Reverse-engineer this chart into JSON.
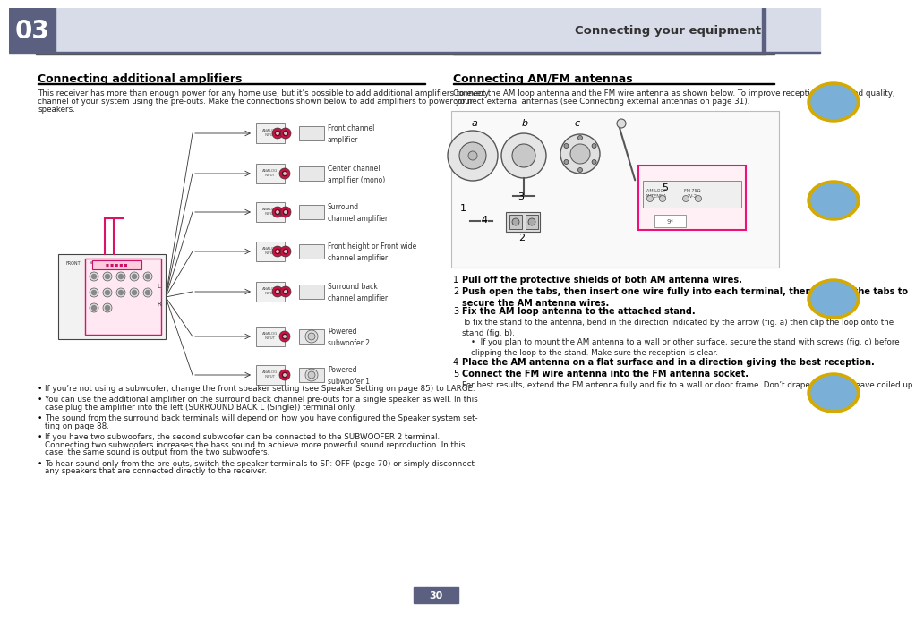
{
  "page_number": "30",
  "chapter_number": "03",
  "chapter_bg_color": "#5b6080",
  "header_text": "Connecting your equipment",
  "header_bar_color": "#5b6080",
  "header_light_color": "#d8dce8",
  "left_section_title": "Connecting additional amplifiers",
  "left_section_body": "This receiver has more than enough power for any home use, but it’s possible to add additional amplifiers to every\nchannel of your system using the pre-outs. Make the connections shown below to add amplifiers to power your\nspeakers.",
  "left_bullet_points": [
    "If you’re not using a subwoofer, change the front speaker setting (see Speaker Setting on page 85) to LARGE.",
    "You can use the additional amplifier on the surround back channel pre-outs for a single speaker as well. In this\ncase plug the amplifier into the left (SURROUND BACK L (Single)) terminal only.",
    "The sound from the surround back terminals will depend on how you have configured the Speaker system set-\nting on page 88.",
    "If you have two subwoofers, the second subwoofer can be connected to the SUBWOOFER 2 terminal.\nConnecting two subwoofers increases the bass sound to achieve more powerful sound reproduction. In this\ncase, the same sound is output from the two subwoofers.",
    "To hear sound only from the pre-outs, switch the speaker terminals to SP: OFF (page 70) or simply disconnect\nany speakers that are connected directly to the receiver."
  ],
  "right_section_title": "Connecting AM/FM antennas",
  "right_section_body": "Connect the AM loop antenna and the FM wire antenna as shown below. To improve reception and sound quality,\nconnect external antennas (see Connecting external antennas on page 31).",
  "right_numbered_steps": [
    {
      "num": "1",
      "bold": true,
      "text": "Pull off the protective shields of both AM antenna wires."
    },
    {
      "num": "2",
      "bold": true,
      "text": "Push open the tabs, then insert one wire fully into each terminal, then release the tabs to\nsecure the AM antenna wires."
    },
    {
      "num": "3",
      "bold": true,
      "text": "Fix the AM loop antenna to the attached stand."
    },
    {
      "num": "",
      "bold": false,
      "text": "To fix the stand to the antenna, bend in the direction indicated by the arrow (fig. a) then clip the loop onto the\nstand (fig. b)."
    },
    {
      "num": "",
      "bold": false,
      "text": "•  If you plan to mount the AM antenna to a wall or other surface, secure the stand with screws (fig. c) before\nclipping the loop to the stand. Make sure the reception is clear."
    },
    {
      "num": "4",
      "bold": true,
      "text": "Place the AM antenna on a flat surface and in a direction giving the best reception."
    },
    {
      "num": "5",
      "bold": true,
      "text": "Connect the FM wire antenna into the FM antenna socket."
    },
    {
      "num": "",
      "bold": false,
      "text": "For best results, extend the FM antenna fully and fix to a wall or door frame. Don’t drape loosely or leave coiled up."
    }
  ],
  "bg_color": "#ffffff",
  "text_color": "#222222",
  "link_color": "#3355aa",
  "title_underline_color": "#000000",
  "divider_color": "#888888",
  "icon_border_color": "#d4aa00",
  "icon_bg_color": "#7ab0d8",
  "page_num_bg": "#5b6080"
}
